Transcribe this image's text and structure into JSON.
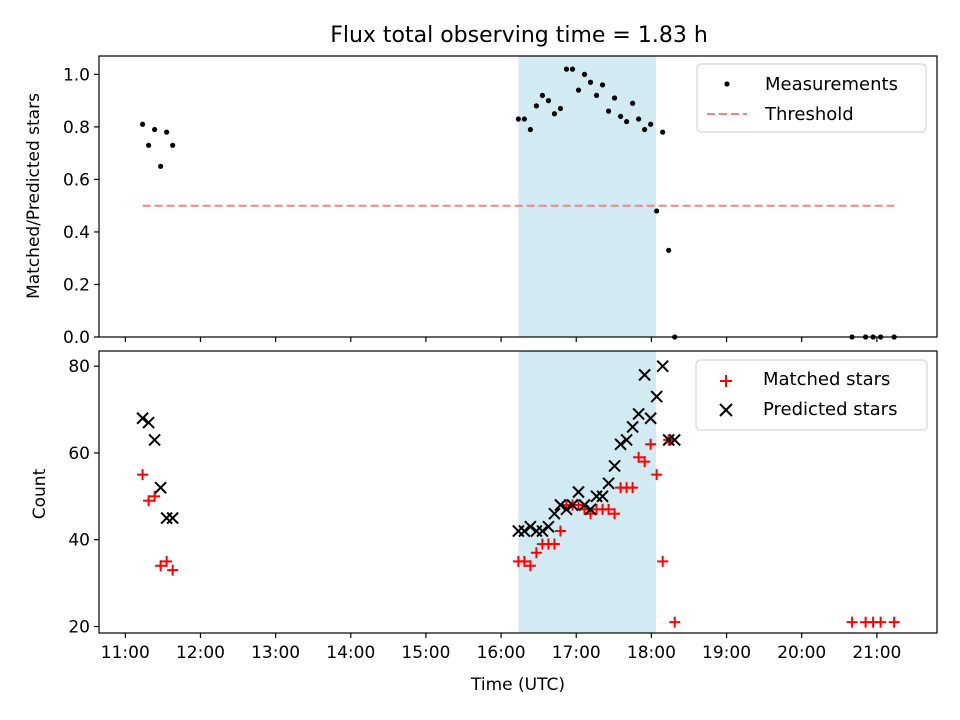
{
  "title": "Flux total observing time = 1.83 h",
  "colors": {
    "measurement": "#000000",
    "threshold": "#ff7f7f",
    "matched": "#ff0000",
    "predicted": "#000000",
    "span": "#add8e6"
  },
  "chart_data": [
    {
      "type": "scatter",
      "ylabel": "Matched/Predicted stars",
      "xlabel": "",
      "xlim": [
        10.65,
        21.8
      ],
      "ylim": [
        0,
        1.07
      ],
      "yticks": [
        0.0,
        0.2,
        0.4,
        0.6,
        0.8,
        1.0
      ],
      "ytick_labels": [
        "0.0",
        "0.2",
        "0.4",
        "0.6",
        "0.8",
        "1.0"
      ],
      "xticks": [
        11,
        12,
        13,
        14,
        15,
        16,
        17,
        18,
        19,
        20,
        21
      ],
      "xtick_labels": [],
      "highlight_span": [
        16.23,
        18.06
      ],
      "legend_position": "top-right",
      "legend": [
        "Measurements",
        "Threshold"
      ],
      "series": [
        {
          "name": "Measurements",
          "marker": "dot",
          "x": [
            11.23,
            11.31,
            11.39,
            11.47,
            11.55,
            11.63,
            16.23,
            16.31,
            16.39,
            16.47,
            16.55,
            16.63,
            16.71,
            16.79,
            16.87,
            16.95,
            17.03,
            17.11,
            17.19,
            17.27,
            17.35,
            17.43,
            17.51,
            17.59,
            17.67,
            17.75,
            17.83,
            17.91,
            17.99,
            18.07,
            18.15,
            18.23,
            18.31,
            20.67,
            20.85,
            20.95,
            21.05,
            21.23
          ],
          "y": [
            0.81,
            0.73,
            0.79,
            0.65,
            0.78,
            0.73,
            0.83,
            0.83,
            0.79,
            0.88,
            0.92,
            0.9,
            0.85,
            0.87,
            1.02,
            1.02,
            0.94,
            1.0,
            0.97,
            0.92,
            0.96,
            0.86,
            0.91,
            0.84,
            0.82,
            0.89,
            0.83,
            0.79,
            0.81,
            0.48,
            0.78,
            0.33,
            0.0,
            0.0,
            0.0,
            0.0,
            0.0,
            0.0
          ]
        },
        {
          "name": "Threshold",
          "line": "dashed",
          "x": [
            11.23,
            21.23
          ],
          "y": [
            0.5,
            0.5
          ]
        }
      ]
    },
    {
      "type": "scatter",
      "ylabel": "Count",
      "xlabel": "Time (UTC)",
      "xlim": [
        10.65,
        21.8
      ],
      "ylim": [
        18.5,
        83.5
      ],
      "yticks": [
        20,
        40,
        60,
        80
      ],
      "ytick_labels": [
        "20",
        "40",
        "60",
        "80"
      ],
      "xticks": [
        11,
        12,
        13,
        14,
        15,
        16,
        17,
        18,
        19,
        20,
        21
      ],
      "xtick_labels": [
        "11:00",
        "12:00",
        "13:00",
        "14:00",
        "15:00",
        "16:00",
        "17:00",
        "18:00",
        "19:00",
        "20:00",
        "21:00"
      ],
      "highlight_span": [
        16.23,
        18.06
      ],
      "legend_position": "top-right",
      "legend": [
        "Matched stars",
        "Predicted stars"
      ],
      "series": [
        {
          "name": "Matched stars",
          "marker": "plus",
          "x": [
            11.23,
            11.31,
            11.39,
            11.47,
            11.55,
            11.63,
            16.23,
            16.31,
            16.39,
            16.47,
            16.55,
            16.63,
            16.71,
            16.79,
            16.87,
            16.95,
            17.03,
            17.11,
            17.19,
            17.27,
            17.35,
            17.43,
            17.51,
            17.59,
            17.67,
            17.75,
            17.83,
            17.91,
            17.99,
            18.07,
            18.15,
            18.23,
            18.31,
            20.67,
            20.85,
            20.95,
            21.05,
            21.23
          ],
          "y": [
            55,
            49,
            50,
            34,
            35,
            33,
            35,
            35,
            34,
            37,
            39,
            39,
            39,
            42,
            48,
            48,
            48,
            47,
            46,
            47,
            47,
            47,
            46,
            52,
            52,
            52,
            59,
            58,
            62,
            55,
            35,
            63,
            21,
            21,
            21,
            21,
            21,
            21
          ]
        },
        {
          "name": "Predicted stars",
          "marker": "x",
          "x": [
            11.23,
            11.31,
            11.39,
            11.47,
            11.55,
            11.63,
            16.23,
            16.31,
            16.39,
            16.47,
            16.55,
            16.63,
            16.71,
            16.79,
            16.87,
            16.95,
            17.03,
            17.11,
            17.19,
            17.27,
            17.35,
            17.43,
            17.51,
            17.59,
            17.67,
            17.75,
            17.83,
            17.91,
            17.99,
            18.07,
            18.15,
            18.23,
            18.31
          ],
          "y": [
            68,
            67,
            63,
            52,
            45,
            45,
            42,
            42,
            43,
            42,
            42,
            43,
            46,
            48,
            47,
            48,
            51,
            48,
            47,
            50,
            50,
            53,
            57,
            62,
            63,
            66,
            69,
            78,
            68,
            73,
            80,
            63,
            63
          ]
        }
      ]
    }
  ]
}
